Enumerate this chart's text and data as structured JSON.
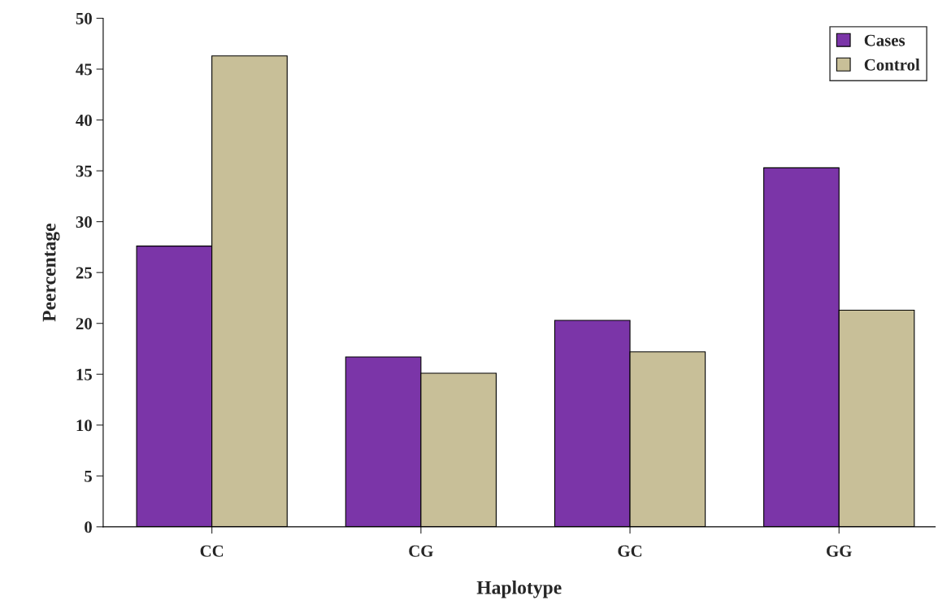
{
  "chart_data": {
    "type": "bar",
    "xlabel": "Haplotype",
    "ylabel": "Peercentage",
    "categories": [
      "CC",
      "CG",
      "GC",
      "GG"
    ],
    "series": [
      {
        "name": "Cases",
        "color": "#7b35a8",
        "values": [
          27.6,
          16.7,
          20.3,
          35.3
        ]
      },
      {
        "name": "Control",
        "color": "#c8bf98",
        "values": [
          46.3,
          15.1,
          17.2,
          21.3
        ]
      }
    ],
    "ylim": [
      0,
      50
    ],
    "yticks": [
      0,
      5,
      10,
      15,
      20,
      25,
      30,
      35,
      40,
      45,
      50
    ],
    "grid": false,
    "legend": "top right"
  }
}
